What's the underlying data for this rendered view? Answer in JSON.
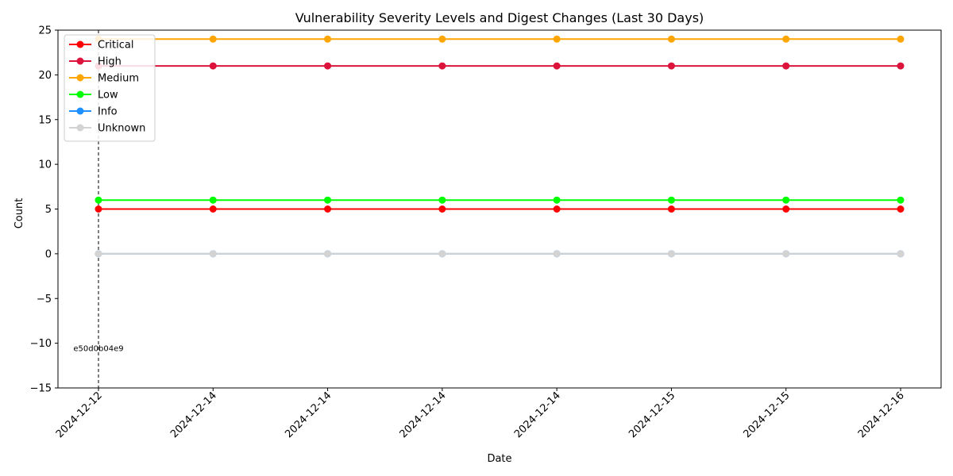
{
  "chart_data": {
    "type": "line",
    "title": "Vulnerability Severity Levels and Digest Changes (Last 30 Days)",
    "xlabel": "Date",
    "ylabel": "Count",
    "categories": [
      "2024-12-12",
      "2024-12-14",
      "2024-12-14",
      "2024-12-14",
      "2024-12-14",
      "2024-12-15",
      "2024-12-15",
      "2024-12-16"
    ],
    "ylim": [
      -15,
      25
    ],
    "yticks": [
      -15,
      -10,
      -5,
      0,
      5,
      10,
      15,
      20,
      25
    ],
    "grid": false,
    "legend_position": "top-left",
    "series": [
      {
        "name": "Critical",
        "color": "#ff0000",
        "values": [
          5,
          5,
          5,
          5,
          5,
          5,
          5,
          5
        ]
      },
      {
        "name": "High",
        "color": "#dc143c",
        "values": [
          21,
          21,
          21,
          21,
          21,
          21,
          21,
          21
        ]
      },
      {
        "name": "Medium",
        "color": "#ffa500",
        "values": [
          24,
          24,
          24,
          24,
          24,
          24,
          24,
          24
        ]
      },
      {
        "name": "Low",
        "color": "#00ff00",
        "values": [
          6,
          6,
          6,
          6,
          6,
          6,
          6,
          6
        ]
      },
      {
        "name": "Info",
        "color": "#1e90ff",
        "values": [
          0,
          0,
          0,
          0,
          0,
          0,
          0,
          0
        ]
      },
      {
        "name": "Unknown",
        "color": "#d3d3d3",
        "values": [
          0,
          0,
          0,
          0,
          0,
          0,
          0,
          0
        ]
      }
    ],
    "annotations": [
      {
        "category_index": 0,
        "label": "e50d0b04e9",
        "style": "dashed-vertical-line",
        "y": -10.5
      }
    ]
  }
}
